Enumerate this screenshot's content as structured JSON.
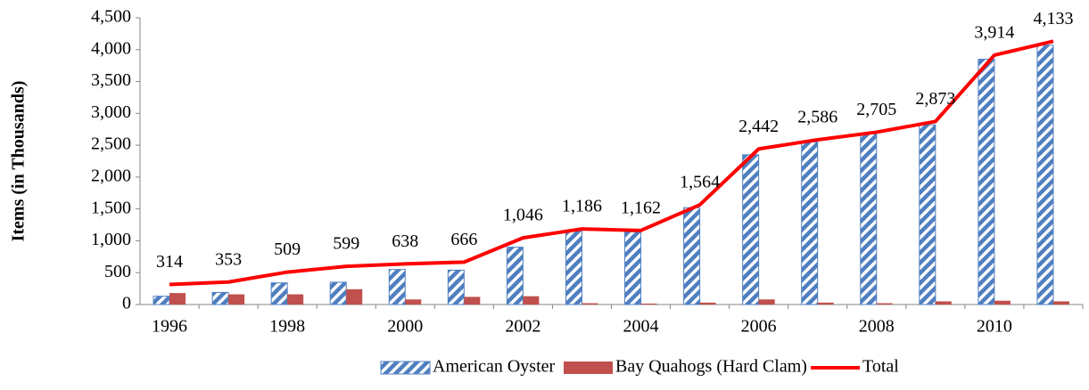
{
  "chart_data": {
    "type": "bar",
    "y_label": "Items (in Thousands)",
    "categories": [
      "1996",
      null,
      "1998",
      null,
      "2000",
      null,
      "2002",
      null,
      "2004",
      null,
      "2006",
      null,
      "2008",
      null,
      "2010",
      null
    ],
    "series": [
      {
        "name": "American Oyster",
        "type": "bar",
        "color": "#4f7fc0",
        "hatch": true,
        "values": [
          130,
          190,
          340,
          350,
          550,
          540,
          900,
          1150,
          1140,
          1520,
          2350,
          2550,
          2680,
          2820,
          3850,
          4070
        ]
      },
      {
        "name": "Bay Quahogs (Hard Clam)",
        "type": "bar",
        "color": "#c0504d",
        "hatch": false,
        "values": [
          180,
          160,
          160,
          240,
          80,
          120,
          130,
          20,
          15,
          30,
          80,
          30,
          20,
          50,
          60,
          50
        ]
      },
      {
        "name": "Total",
        "type": "line",
        "color": "#ff0000",
        "values": [
          314,
          353,
          509,
          599,
          638,
          666,
          1046,
          1186,
          1162,
          1564,
          2442,
          2586,
          2705,
          2873,
          3914,
          4133
        ],
        "value_labels": [
          "314",
          "353",
          "509",
          "599",
          "638",
          "666",
          "1,046",
          "1,186",
          "1,162",
          "1,564",
          "2,442",
          "2,586",
          "2,705",
          "2,873",
          "3,914",
          "4,133"
        ]
      }
    ],
    "ylim": [
      0,
      4500
    ],
    "yticks": [
      0,
      500,
      {
        "value": 1000,
        "label": "1,000"
      },
      {
        "value": 1500,
        "label": "1,500"
      },
      {
        "value": 2000,
        "label": "2,000"
      },
      {
        "value": 2500,
        "label": "2,500"
      },
      {
        "value": 3000,
        "label": "3,000"
      },
      {
        "value": 3500,
        "label": "3,500"
      },
      {
        "value": 4000,
        "label": "4,000"
      },
      {
        "value": 4500,
        "label": "4,500"
      }
    ],
    "grid": false,
    "legend": "bottom"
  }
}
